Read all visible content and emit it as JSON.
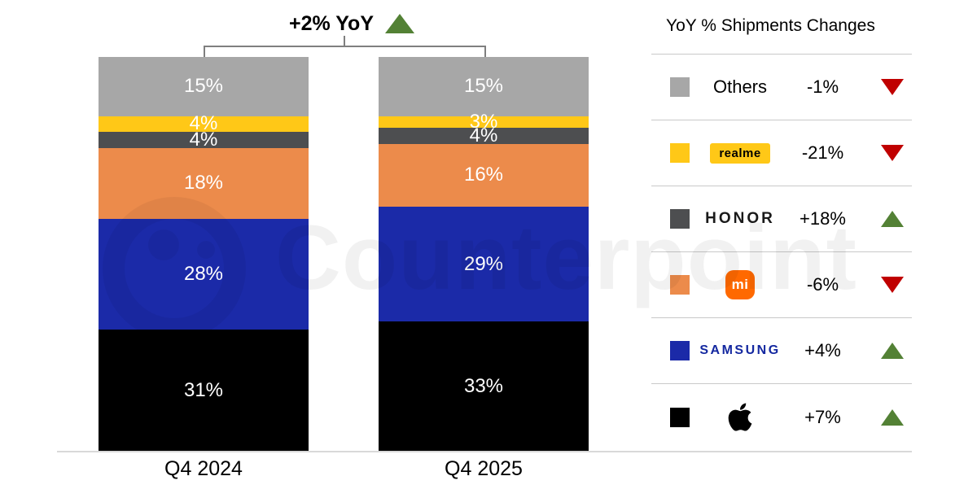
{
  "header": {
    "total_change": "+2% YoY",
    "direction": "up"
  },
  "watermark": {
    "text": "Counterpoint"
  },
  "chart_data": {
    "type": "bar",
    "stacked": true,
    "stack_order": "top-to-bottom",
    "title": "+2% YoY",
    "categories": [
      "Q4 2024",
      "Q4 2025"
    ],
    "series": [
      {
        "name": "Others",
        "color": "#a7a7a7",
        "values": [
          15,
          15
        ]
      },
      {
        "name": "realme",
        "color": "#ffc817",
        "values": [
          4,
          3
        ]
      },
      {
        "name": "HONOR",
        "color": "#4d4e50",
        "values": [
          4,
          4
        ]
      },
      {
        "name": "Xiaomi",
        "color": "#ec8b4b",
        "values": [
          18,
          16
        ]
      },
      {
        "name": "Samsung",
        "color": "#1b2aa8",
        "values": [
          28,
          29
        ]
      },
      {
        "name": "Apple",
        "color": "#000000",
        "values": [
          31,
          33
        ]
      }
    ],
    "value_suffix": "%",
    "ylim": [
      0,
      100
    ],
    "grid": false,
    "legend_position": "right"
  },
  "legend": {
    "title": "YoY % Shipments Changes",
    "rows": [
      {
        "brand": "Others",
        "label": "Others",
        "logo_style": "plain",
        "change": "-1%",
        "direction": "down",
        "color": "#a7a7a7"
      },
      {
        "brand": "realme",
        "label": "realme",
        "logo_style": "realme-badge",
        "change": "-21%",
        "direction": "down",
        "color": "#ffc817"
      },
      {
        "brand": "HONOR",
        "label": "HONOR",
        "logo_style": "honor-wordmark",
        "change": "+18%",
        "direction": "up",
        "color": "#4d4e50"
      },
      {
        "brand": "Xiaomi",
        "label": "mi",
        "logo_style": "xiaomi-logo",
        "change": "-6%",
        "direction": "down",
        "color": "#ec8b4b"
      },
      {
        "brand": "Samsung",
        "label": "SAMSUNG",
        "logo_style": "samsung-wordmark",
        "change": "+4%",
        "direction": "up",
        "color": "#1b2aa8"
      },
      {
        "brand": "Apple",
        "label": "",
        "logo_style": "apple-logo",
        "change": "+7%",
        "direction": "up",
        "color": "#000000"
      }
    ]
  },
  "colors": {
    "up_green": "#538135",
    "down_red": "#c00000",
    "axis_line": "#d9d9d9",
    "divider": "#c9c9c9",
    "bracket": "#7f7f7f",
    "xiaomi_logo_bg": "#ff6900",
    "samsung_wordmark": "#1428a0",
    "realme_badge_bg": "#ffc817"
  }
}
